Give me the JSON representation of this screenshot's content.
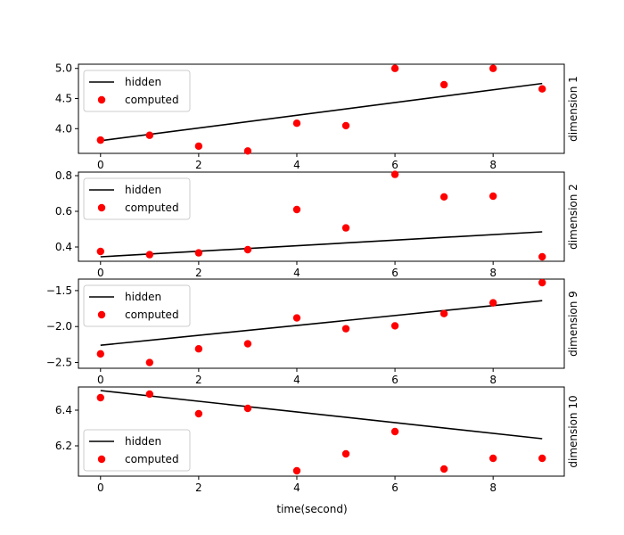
{
  "chart_data": [
    {
      "type": "line",
      "ylabel_right": "dimension 1",
      "xlim": [
        -0.45,
        9.45
      ],
      "ylim": [
        3.59,
        5.07
      ],
      "x_ticks": [
        0,
        2,
        4,
        6,
        8
      ],
      "y_ticks": [
        4.0,
        4.5,
        5.0
      ],
      "y_tick_labels": [
        "4.0",
        "4.5",
        "5.0"
      ],
      "legend": "upper left",
      "series": [
        {
          "name": "hidden",
          "type": "line",
          "color": "#000000",
          "x": [
            0,
            9
          ],
          "y": [
            3.8,
            4.75
          ]
        },
        {
          "name": "computed",
          "type": "scatter",
          "color": "#ff0000",
          "x": [
            0,
            1,
            2,
            3,
            4,
            5,
            6,
            7,
            8,
            9
          ],
          "y": [
            3.81,
            3.89,
            3.71,
            3.63,
            4.09,
            4.05,
            5.0,
            4.73,
            5.0,
            4.66
          ]
        }
      ]
    },
    {
      "type": "line",
      "ylabel_right": "dimension 2",
      "xlim": [
        -0.45,
        9.45
      ],
      "ylim": [
        0.32,
        0.82
      ],
      "x_ticks": [
        0,
        2,
        4,
        6,
        8
      ],
      "y_ticks": [
        0.4,
        0.6,
        0.8
      ],
      "y_tick_labels": [
        "0.4",
        "0.6",
        "0.8"
      ],
      "legend": "upper left",
      "series": [
        {
          "name": "hidden",
          "type": "line",
          "color": "#000000",
          "x": [
            0,
            9
          ],
          "y": [
            0.345,
            0.485
          ]
        },
        {
          "name": "computed",
          "type": "scatter",
          "color": "#ff0000",
          "x": [
            0,
            1,
            2,
            3,
            4,
            5,
            6,
            7,
            8,
            9
          ],
          "y": [
            0.375,
            0.357,
            0.367,
            0.385,
            0.61,
            0.507,
            0.807,
            0.681,
            0.685,
            0.345
          ]
        }
      ]
    },
    {
      "type": "line",
      "ylabel_right": "dimension 9",
      "xlim": [
        -0.45,
        9.45
      ],
      "ylim": [
        -2.58,
        -1.34
      ],
      "x_ticks": [
        0,
        2,
        4,
        6,
        8
      ],
      "y_ticks": [
        -2.5,
        -2.0,
        -1.5
      ],
      "y_tick_labels": [
        "−2.5",
        "−2.0",
        "−1.5"
      ],
      "legend": "upper left",
      "series": [
        {
          "name": "hidden",
          "type": "line",
          "color": "#000000",
          "x": [
            0,
            9
          ],
          "y": [
            -2.26,
            -1.64
          ]
        },
        {
          "name": "computed",
          "type": "scatter",
          "color": "#ff0000",
          "x": [
            0,
            1,
            2,
            3,
            4,
            5,
            6,
            7,
            8,
            9
          ],
          "y": [
            -2.38,
            -2.5,
            -2.31,
            -2.24,
            -1.88,
            -2.03,
            -1.99,
            -1.82,
            -1.67,
            -1.39
          ]
        }
      ]
    },
    {
      "type": "line",
      "ylabel_right": "dimension 10",
      "xlabel": "time(second)",
      "xlim": [
        -0.45,
        9.45
      ],
      "ylim": [
        6.03,
        6.53
      ],
      "x_ticks": [
        0,
        2,
        4,
        6,
        8
      ],
      "x_tick_labels": [
        "0",
        "2",
        "4",
        "6",
        "8"
      ],
      "y_ticks": [
        6.2,
        6.4
      ],
      "y_tick_labels": [
        "6.2",
        "6.4"
      ],
      "legend": "lower left",
      "series": [
        {
          "name": "hidden",
          "type": "line",
          "color": "#000000",
          "x": [
            0,
            9
          ],
          "y": [
            6.51,
            6.24
          ]
        },
        {
          "name": "computed",
          "type": "scatter",
          "color": "#ff0000",
          "x": [
            0,
            1,
            2,
            3,
            4,
            5,
            6,
            7,
            8,
            9
          ],
          "y": [
            6.47,
            6.49,
            6.38,
            6.41,
            6.06,
            6.155,
            6.28,
            6.07,
            6.13,
            6.13
          ]
        }
      ]
    }
  ]
}
